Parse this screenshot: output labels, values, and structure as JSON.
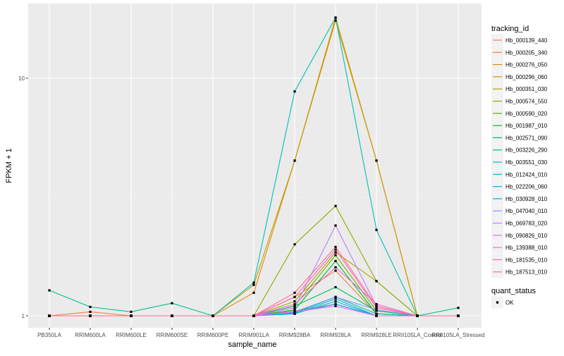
{
  "chart_data": {
    "type": "line",
    "ylabel": "FPKM + 1",
    "xlabel": "sample_name",
    "y_scale": "log",
    "y_ticks": [
      {
        "value": 1,
        "label": "1"
      },
      {
        "value": 10,
        "label": "10"
      }
    ],
    "categories": [
      "PB350LA",
      "RRIM600LA",
      "RRIM600LE",
      "RRIM600SE",
      "RRIM600PE",
      "RRIM901LA",
      "RRIM928BA",
      "RRIM928LA",
      "RRIM928LE",
      "RRII105LA_Control",
      "RRII105LA_Stressed"
    ],
    "legend_title": "tracking_id",
    "shape_legend": {
      "title": "quant_status",
      "entries": [
        "OK"
      ]
    },
    "series": [
      {
        "name": "Hb_000139_440",
        "color": "#F8766D",
        "values": [
          1,
          1,
          1,
          1,
          1,
          1,
          1.05,
          1.12,
          1.0,
          1,
          1
        ]
      },
      {
        "name": "Hb_000205_340",
        "color": "#EC8239",
        "values": [
          1,
          1.04,
          1,
          1,
          1,
          1,
          1.2,
          1.55,
          1.02,
          1,
          1
        ]
      },
      {
        "name": "Hb_000276_050",
        "color": "#DB8E00",
        "values": [
          1,
          1,
          1,
          1,
          1,
          1.25,
          4.5,
          17.5,
          4.5,
          1,
          1
        ]
      },
      {
        "name": "Hb_000296_060",
        "color": "#C79800",
        "values": [
          1,
          1,
          1,
          1,
          1,
          1.35,
          4.5,
          18,
          4.5,
          1,
          1
        ]
      },
      {
        "name": "Hb_000351_030",
        "color": "#AEA200",
        "values": [
          1,
          1,
          1,
          1,
          1,
          1,
          1.15,
          1.85,
          1.4,
          1,
          1
        ]
      },
      {
        "name": "Hb_000574_550",
        "color": "#8FAA00",
        "values": [
          1,
          1,
          1,
          1,
          1,
          1,
          2.0,
          2.9,
          1.4,
          1,
          1
        ]
      },
      {
        "name": "Hb_000590_020",
        "color": "#64B200",
        "values": [
          1,
          1,
          1,
          1,
          1,
          1,
          1.1,
          1.8,
          1.05,
          1,
          1
        ]
      },
      {
        "name": "Hb_001987_010",
        "color": "#00B81B",
        "values": [
          1,
          1,
          1,
          1,
          1,
          1,
          1.06,
          1.7,
          1.02,
          1,
          1
        ]
      },
      {
        "name": "Hb_002571_090",
        "color": "#00BD5C",
        "values": [
          1,
          1,
          1,
          1,
          1,
          1,
          1.1,
          1.32,
          1.05,
          1,
          1
        ]
      },
      {
        "name": "Hb_003226_290",
        "color": "#00C08E",
        "values": [
          1.28,
          1.09,
          1.04,
          1.13,
          1,
          1,
          1.03,
          1.2,
          1.02,
          1,
          1.08
        ]
      },
      {
        "name": "Hb_003551_030",
        "color": "#00C1B2",
        "values": [
          1,
          1,
          1,
          1,
          1,
          1.38,
          8.8,
          18,
          2.3,
          1,
          1
        ]
      },
      {
        "name": "Hb_012424_010",
        "color": "#00BCD1",
        "values": [
          1,
          1,
          1,
          1,
          1,
          1,
          1.02,
          1.15,
          1.0,
          1,
          1
        ]
      },
      {
        "name": "Hb_022206_060",
        "color": "#00B4EB",
        "values": [
          1,
          1,
          1,
          1,
          1,
          1,
          1.02,
          1.18,
          1.0,
          1,
          1
        ]
      },
      {
        "name": "Hb_030928_010",
        "color": "#00A5FF",
        "values": [
          1,
          1,
          1,
          1,
          1,
          1,
          1.03,
          1.12,
          1.0,
          1,
          1
        ]
      },
      {
        "name": "Hb_047040_010",
        "color": "#7F96FF",
        "values": [
          1,
          1,
          1,
          1,
          1,
          1,
          1.04,
          1.2,
          1.06,
          1,
          1
        ]
      },
      {
        "name": "Hb_069783_020",
        "color": "#BC81FF",
        "values": [
          1,
          1,
          1,
          1,
          1,
          1,
          1.08,
          2.4,
          1.1,
          1,
          1
        ]
      },
      {
        "name": "Hb_090826_010",
        "color": "#E26EF7",
        "values": [
          1,
          1,
          1,
          1,
          1,
          1,
          1.04,
          1.1,
          1.0,
          1,
          1
        ]
      },
      {
        "name": "Hb_139388_010",
        "color": "#F863DF",
        "values": [
          1,
          1,
          1,
          1,
          1,
          1,
          1.12,
          1.6,
          1.12,
          1,
          1
        ]
      },
      {
        "name": "Hb_181535_010",
        "color": "#FF62BC",
        "values": [
          1,
          1,
          1,
          1,
          1,
          1,
          1.2,
          1.9,
          1.08,
          1,
          1
        ]
      },
      {
        "name": "Hb_187513_010",
        "color": "#FF6C91",
        "values": [
          1,
          1,
          1,
          1,
          1,
          1,
          1.25,
          1.95,
          1.1,
          1,
          1
        ]
      }
    ]
  }
}
